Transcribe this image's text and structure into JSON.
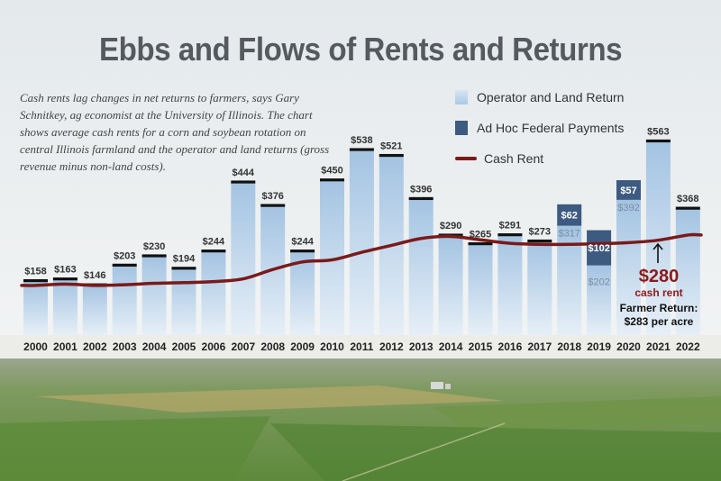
{
  "title": "Ebbs and Flows of Rents and Returns",
  "subtitle": "Cash rents lag changes in net returns to farmers, says Gary Schnitkey, ag economist at the University of Illinois. The chart shows average cash rents for a corn and soybean rotation on central Illinois farmland and the operator and land returns (gross revenue minus non-land costs).",
  "legend": {
    "return_label": "Operator and Land Return",
    "payments_label": "Ad Hoc Federal Payments",
    "rent_label": "Cash Rent"
  },
  "callout": {
    "value": "$280",
    "label": "cash rent",
    "return_label": "Farmer Return:",
    "return_value": "$283 per acre"
  },
  "colors": {
    "return_bar": "#a9c9e6",
    "payment_bar": "#3d5a80",
    "rent_line": "#7a1a1a",
    "text": "#333333"
  },
  "chart_data": {
    "type": "bar",
    "categories": [
      "2000",
      "2001",
      "2002",
      "2003",
      "2004",
      "2005",
      "2006",
      "2007",
      "2008",
      "2009",
      "2010",
      "2011",
      "2012",
      "2013",
      "2014",
      "2015",
      "2016",
      "2017",
      "2018",
      "2019",
      "2020",
      "2021",
      "2022"
    ],
    "series": [
      {
        "name": "Operator and Land Return",
        "values": [
          158,
          163,
          146,
          203,
          230,
          194,
          244,
          444,
          376,
          244,
          450,
          538,
          521,
          396,
          290,
          265,
          291,
          273,
          317,
          202,
          392,
          563,
          368
        ]
      },
      {
        "name": "Ad Hoc Federal Payments",
        "values": [
          0,
          0,
          0,
          0,
          0,
          0,
          0,
          0,
          0,
          0,
          0,
          0,
          0,
          0,
          0,
          0,
          0,
          0,
          62,
          102,
          57,
          0,
          0
        ]
      },
      {
        "name": "Cash Rent",
        "values": [
          144,
          148,
          144,
          146,
          150,
          152,
          155,
          163,
          190,
          212,
          218,
          240,
          260,
          280,
          286,
          276,
          266,
          263,
          263,
          265,
          268,
          275,
          290
        ]
      }
    ],
    "labels": [
      "$158",
      "$163",
      "$146",
      "$203",
      "$230",
      "$194",
      "$244",
      "$444",
      "$376",
      "$244",
      "$450",
      "$538",
      "$521",
      "$396",
      "$290",
      "$265",
      "$291",
      "$273",
      "$317",
      "$202",
      "$392",
      "$563",
      "$368"
    ],
    "payment_labels": [
      "",
      "",
      "",
      "",
      "",
      "",
      "",
      "",
      "",
      "",
      "",
      "",
      "",
      "",
      "",
      "",
      "",
      "",
      "$62",
      "$102",
      "$57",
      "",
      ""
    ],
    "ylim": [
      0,
      590
    ]
  }
}
